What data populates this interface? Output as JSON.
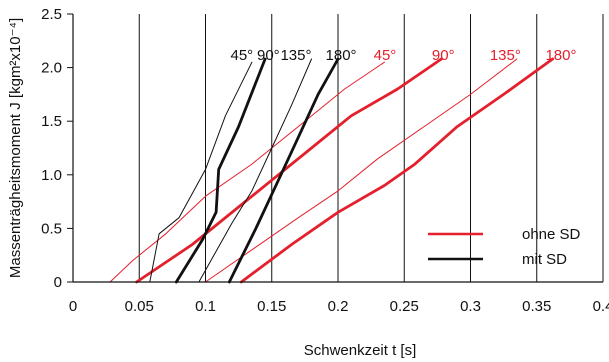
{
  "chart_data": {
    "type": "line",
    "xlabel": "Schwenkzeit t [s]",
    "ylabel": "Massenträgheitsmoment J [kgm²x10⁻⁴]",
    "xlim": [
      0,
      0.4
    ],
    "ylim": [
      0,
      2.5
    ],
    "xticks": [
      0,
      0.05,
      0.1,
      0.15,
      0.2,
      0.25,
      0.3,
      0.35,
      0.4
    ],
    "xtick_labels": [
      "0",
      "0.05",
      "0.1",
      "0.15",
      "0.2",
      "0.25",
      "0.3",
      "0.35",
      "0.4"
    ],
    "yticks": [
      0,
      0.5,
      1.0,
      1.5,
      2.0,
      2.5
    ],
    "ytick_labels": [
      "0",
      "0.5",
      "1.0",
      "1.5",
      "2.0",
      "2.5"
    ],
    "grid": "vertical",
    "legend_position": "bottom-right",
    "legend": [
      {
        "label": "ohne SD",
        "color": "#e3202c"
      },
      {
        "label": "mit SD",
        "color": "#111111"
      }
    ],
    "series": [
      {
        "group": "ohne SD",
        "name": "45°",
        "color": "#e3202c",
        "weight": "thin",
        "x": [
          0.028,
          0.045,
          0.07,
          0.1,
          0.135,
          0.17,
          0.205,
          0.235
        ],
        "y": [
          0.0,
          0.2,
          0.45,
          0.8,
          1.1,
          1.45,
          1.8,
          2.05
        ]
      },
      {
        "group": "ohne SD",
        "name": "90°",
        "color": "#e3202c",
        "weight": "thick",
        "x": [
          0.048,
          0.09,
          0.125,
          0.155,
          0.18,
          0.21,
          0.245,
          0.278
        ],
        "y": [
          0.0,
          0.35,
          0.7,
          1.0,
          1.25,
          1.55,
          1.8,
          2.08
        ]
      },
      {
        "group": "ohne SD",
        "name": "135°",
        "color": "#e3202c",
        "weight": "thin",
        "x": [
          0.1,
          0.135,
          0.17,
          0.2,
          0.23,
          0.265,
          0.3,
          0.335
        ],
        "y": [
          0.0,
          0.3,
          0.6,
          0.85,
          1.15,
          1.45,
          1.75,
          2.08
        ]
      },
      {
        "group": "ohne SD",
        "name": "180°",
        "color": "#e3202c",
        "weight": "thick",
        "x": [
          0.127,
          0.165,
          0.2,
          0.235,
          0.258,
          0.29,
          0.325,
          0.362
        ],
        "y": [
          0.0,
          0.35,
          0.65,
          0.9,
          1.1,
          1.45,
          1.75,
          2.08
        ]
      },
      {
        "group": "mit SD",
        "name": "45°",
        "color": "#111111",
        "weight": "thin",
        "x": [
          0.058,
          0.065,
          0.08,
          0.1,
          0.115,
          0.135
        ],
        "y": [
          0.0,
          0.45,
          0.6,
          1.05,
          1.55,
          2.05
        ]
      },
      {
        "group": "mit SD",
        "name": "90°",
        "color": "#111111",
        "weight": "thick",
        "x": [
          0.078,
          0.098,
          0.108,
          0.11,
          0.125,
          0.145
        ],
        "y": [
          0.0,
          0.4,
          0.65,
          1.05,
          1.45,
          2.08
        ]
      },
      {
        "group": "mit SD",
        "name": "135°",
        "color": "#111111",
        "weight": "thin",
        "x": [
          0.095,
          0.12,
          0.135,
          0.15,
          0.165,
          0.18
        ],
        "y": [
          0.0,
          0.55,
          0.85,
          1.25,
          1.65,
          2.08
        ]
      },
      {
        "group": "mit SD",
        "name": "180°",
        "color": "#111111",
        "weight": "thick",
        "x": [
          0.118,
          0.138,
          0.155,
          0.17,
          0.185,
          0.2
        ],
        "y": [
          0.0,
          0.5,
          0.95,
          1.35,
          1.75,
          2.08
        ]
      }
    ],
    "annotations": [
      {
        "text": "45°",
        "x": 0.136,
        "y": 2.07,
        "color": "#111111"
      },
      {
        "text": "90°",
        "x": 0.156,
        "y": 2.07,
        "color": "#111111"
      },
      {
        "text": "135°",
        "x": 0.18,
        "y": 2.07,
        "color": "#111111"
      },
      {
        "text": "180°",
        "x": 0.214,
        "y": 2.07,
        "color": "#111111"
      },
      {
        "text": "45°",
        "x": 0.244,
        "y": 2.07,
        "color": "#e3202c"
      },
      {
        "text": "90°",
        "x": 0.288,
        "y": 2.07,
        "color": "#e3202c"
      },
      {
        "text": "135°",
        "x": 0.338,
        "y": 2.07,
        "color": "#e3202c"
      },
      {
        "text": "180°",
        "x": 0.38,
        "y": 2.07,
        "color": "#e3202c"
      }
    ]
  }
}
